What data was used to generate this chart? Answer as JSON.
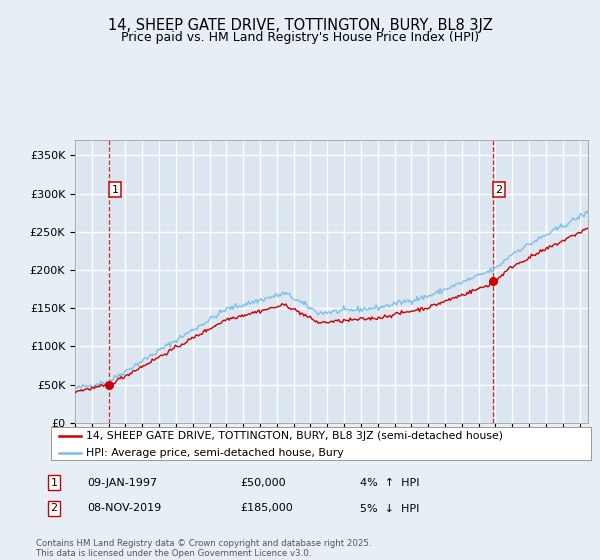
{
  "title": "14, SHEEP GATE DRIVE, TOTTINGTON, BURY, BL8 3JZ",
  "subtitle": "Price paid vs. HM Land Registry's House Price Index (HPI)",
  "background_color": "#e8eef5",
  "plot_bg_color": "#dce6f0",
  "grid_color": "#ffffff",
  "xlim": [
    1995.0,
    2025.5
  ],
  "ylim": [
    0,
    370000
  ],
  "yticks": [
    0,
    50000,
    100000,
    150000,
    200000,
    250000,
    300000,
    350000
  ],
  "ytick_labels": [
    "£0",
    "£50K",
    "£100K",
    "£150K",
    "£200K",
    "£250K",
    "£300K",
    "£350K"
  ],
  "sale1_x": 1997.03,
  "sale1_y": 50000,
  "sale2_x": 2019.85,
  "sale2_y": 185000,
  "legend_line1": "14, SHEEP GATE DRIVE, TOTTINGTON, BURY, BL8 3JZ (semi-detached house)",
  "legend_line2": "HPI: Average price, semi-detached house, Bury",
  "hpi_color": "#7abde8",
  "price_color": "#cc0000",
  "dashed_color": "#cc0000",
  "footer": "Contains HM Land Registry data © Crown copyright and database right 2025.\nThis data is licensed under the Open Government Licence v3.0."
}
